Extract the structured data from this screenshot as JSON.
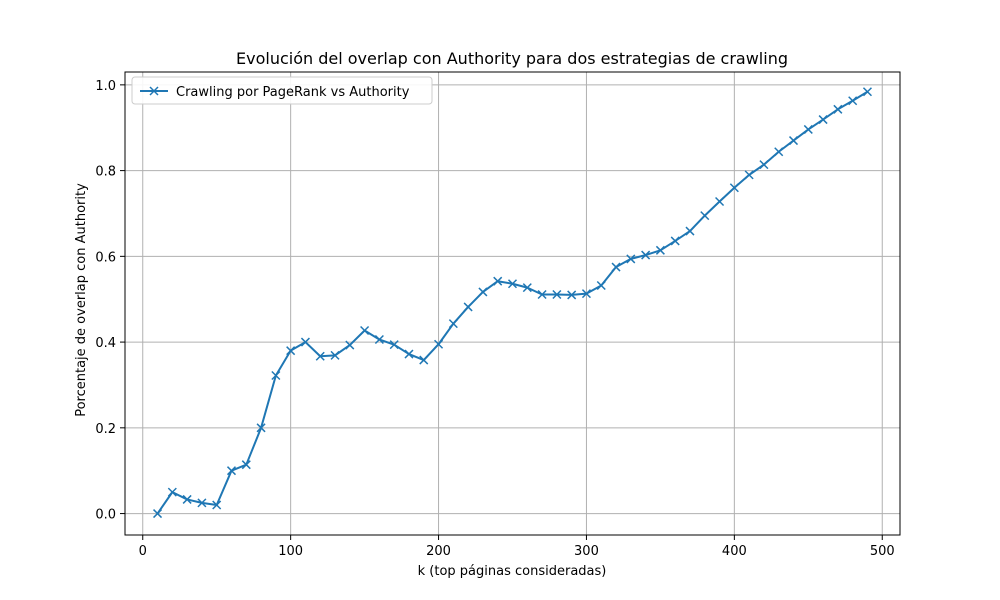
{
  "chart_data": {
    "type": "line",
    "title": "Evolución del overlap con Authority para dos estrategias de crawling",
    "xlabel": "k (top páginas consideradas)",
    "ylabel": "Porcentaje de overlap con Authority",
    "xlim": [
      -12,
      512
    ],
    "ylim": [
      -0.05,
      1.03
    ],
    "xticks": [
      0,
      100,
      200,
      300,
      400,
      500
    ],
    "yticks": [
      0.0,
      0.2,
      0.4,
      0.6,
      0.8,
      1.0
    ],
    "xtick_labels": [
      "0",
      "100",
      "200",
      "300",
      "400",
      "500"
    ],
    "ytick_labels": [
      "0.0",
      "0.2",
      "0.4",
      "0.6",
      "0.8",
      "1.0"
    ],
    "grid": true,
    "legend_position": "top-left",
    "series": [
      {
        "name": "Crawling por PageRank vs Authority",
        "color": "#1f77b4",
        "marker": "x",
        "x": [
          10,
          20,
          30,
          40,
          50,
          60,
          70,
          80,
          90,
          100,
          110,
          120,
          130,
          140,
          150,
          160,
          170,
          180,
          190,
          200,
          210,
          220,
          230,
          240,
          250,
          260,
          270,
          280,
          290,
          300,
          310,
          320,
          330,
          340,
          350,
          360,
          370,
          380,
          390,
          400,
          410,
          420,
          430,
          440,
          450,
          460,
          470,
          480,
          490
        ],
        "y": [
          0.0,
          0.05,
          0.033,
          0.025,
          0.02,
          0.1,
          0.114,
          0.2,
          0.322,
          0.38,
          0.4,
          0.367,
          0.369,
          0.393,
          0.427,
          0.406,
          0.394,
          0.372,
          0.358,
          0.395,
          0.443,
          0.482,
          0.517,
          0.542,
          0.536,
          0.527,
          0.511,
          0.511,
          0.51,
          0.513,
          0.532,
          0.575,
          0.594,
          0.603,
          0.614,
          0.636,
          0.659,
          0.695,
          0.728,
          0.76,
          0.79,
          0.814,
          0.844,
          0.87,
          0.896,
          0.919,
          0.943,
          0.963,
          0.984
        ]
      }
    ]
  }
}
